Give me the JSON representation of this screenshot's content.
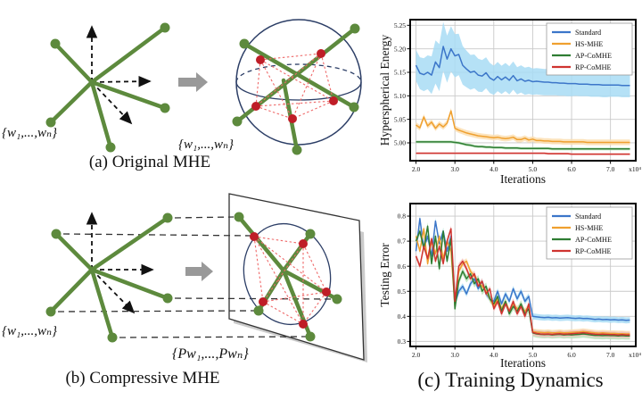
{
  "figure": {
    "background": "#ffffff"
  },
  "colors": {
    "vector_green": "#5d8a3d",
    "dot_red": "#bf1d27",
    "repulsion_dashed_red": "#ef6a6a",
    "sphere_navy": "#2c3e66",
    "transform_arrow_gray": "#999999",
    "axis_black": "#111111"
  },
  "panels": {
    "a": {
      "caption": "(a) Original MHE",
      "set_label_left": "{w₁,...,wₙ}",
      "set_label_right": "{w₁,...,wₙ}"
    },
    "b": {
      "caption": "(b) Compressive MHE",
      "set_label_left": "{w₁,...,wₙ}",
      "set_label_right": "{Pw₁,...,Pwₙ}"
    },
    "c": {
      "caption": "(c) Training Dynamics"
    }
  },
  "chart_data": [
    {
      "type": "line",
      "name": "hyperspherical-energy-chart",
      "title": "",
      "xlabel": "Iterations",
      "ylabel": "Hyperspherical Energy",
      "x_exp_label": "x10⁴",
      "xlim": [
        1.85,
        7.65
      ],
      "ylim": [
        4.962,
        5.262
      ],
      "xticks": [
        2,
        3,
        4,
        5,
        6,
        7
      ],
      "xtick_labels": [
        "2.0",
        "3.0",
        "4.0",
        "5.0",
        "6.0",
        "7.0"
      ],
      "yticks": [
        5.0,
        5.05,
        5.1,
        5.15,
        5.2,
        5.25
      ],
      "ytick_labels": [
        "5.00",
        "5.05",
        "5.10",
        "5.15",
        "5.20",
        "5.25"
      ],
      "grid": true,
      "legend_position": "top-right",
      "x": [
        2,
        2.1,
        2.2,
        2.3,
        2.4,
        2.5,
        2.6,
        2.7,
        2.8,
        2.9,
        3,
        3.1,
        3.2,
        3.3,
        3.4,
        3.5,
        3.6,
        3.7,
        3.8,
        3.9,
        4,
        4.1,
        4.2,
        4.3,
        4.4,
        4.5,
        4.6,
        4.7,
        4.8,
        4.9,
        5,
        5.1,
        5.2,
        5.3,
        5.4,
        5.5,
        5.6,
        5.7,
        5.8,
        5.9,
        6,
        6.1,
        6.2,
        6.3,
        6.4,
        6.5,
        6.6,
        6.7,
        6.8,
        6.9,
        7,
        7.1,
        7.2,
        7.3,
        7.4,
        7.5
      ],
      "series": [
        {
          "name": "Standard",
          "color": "#3c76c9",
          "band_color": "#a8dcf4",
          "values": [
            5.165,
            5.148,
            5.145,
            5.15,
            5.144,
            5.172,
            5.16,
            5.205,
            5.178,
            5.2,
            5.185,
            5.188,
            5.165,
            5.157,
            5.15,
            5.152,
            5.144,
            5.142,
            5.149,
            5.138,
            5.133,
            5.141,
            5.134,
            5.14,
            5.133,
            5.143,
            5.132,
            5.136,
            5.131,
            5.133,
            5.13,
            5.131,
            5.13,
            5.129,
            5.129,
            5.128,
            5.128,
            5.127,
            5.127,
            5.126,
            5.126,
            5.126,
            5.125,
            5.125,
            5.125,
            5.124,
            5.124,
            5.124,
            5.123,
            5.123,
            5.123,
            5.123,
            5.123,
            5.122,
            5.122,
            5.122
          ],
          "band": [
            0.033,
            0.034,
            0.035,
            0.036,
            0.04,
            0.046,
            0.05,
            0.052,
            0.05,
            0.048,
            0.046,
            0.044,
            0.041,
            0.039,
            0.037,
            0.036,
            0.035,
            0.034,
            0.033,
            0.032,
            0.031,
            0.031,
            0.03,
            0.03,
            0.03,
            0.03,
            0.029,
            0.029,
            0.029,
            0.029,
            0.028,
            0.028,
            0.028,
            0.028,
            0.028,
            0.027,
            0.027,
            0.027,
            0.027,
            0.027,
            0.027,
            0.026,
            0.026,
            0.026,
            0.026,
            0.026,
            0.026,
            0.026,
            0.026,
            0.026,
            0.025,
            0.025,
            0.025,
            0.025,
            0.025,
            0.025
          ]
        },
        {
          "name": "HS-MHE",
          "color": "#efa02f",
          "band_color": "#fbdeb0",
          "values": [
            5.038,
            5.032,
            5.055,
            5.036,
            5.044,
            5.031,
            5.04,
            5.034,
            5.042,
            5.068,
            5.031,
            5.027,
            5.024,
            5.021,
            5.019,
            5.017,
            5.015,
            5.014,
            5.013,
            5.012,
            5.011,
            5.012,
            5.01,
            5.009,
            5.01,
            5.012,
            5.007,
            5.007,
            5.01,
            5.006,
            5.008,
            5.005,
            5.005,
            5.004,
            5.004,
            5.003,
            5.003,
            5.003,
            5.002,
            5.002,
            5.002,
            5.002,
            5.002,
            5.002,
            5.001,
            5.001,
            5.001,
            5.001,
            5.001,
            5.001,
            5.001,
            5.001,
            5.001,
            5.001,
            5.001,
            5.001
          ],
          "band": 0.006
        },
        {
          "name": "AP-CoMHE",
          "color": "#2f7d33",
          "band_color": "#bce3bc",
          "values": [
            5.002,
            5.002,
            5.002,
            5.002,
            5.002,
            5.002,
            5.002,
            5.002,
            5.002,
            5.002,
            5.001,
            5.0,
            4.998,
            4.996,
            4.995,
            4.993,
            4.992,
            4.992,
            4.991,
            4.991,
            4.99,
            4.99,
            4.99,
            4.989,
            4.989,
            4.989,
            4.989,
            4.988,
            4.988,
            4.988,
            4.988,
            4.988,
            4.988,
            4.988,
            4.988,
            4.987,
            4.987,
            4.987,
            4.987,
            4.987,
            4.987,
            4.987,
            4.987,
            4.987,
            4.987,
            4.987,
            4.987,
            4.987,
            4.987,
            4.987,
            4.987,
            4.987,
            4.987,
            4.987,
            4.987,
            4.987
          ],
          "band": 0.003
        },
        {
          "name": "RP-CoMHE",
          "color": "#cf3430",
          "band_color": "#f5bdba",
          "values": [
            4.978,
            4.978,
            4.978,
            4.978,
            4.978,
            4.978,
            4.978,
            4.978,
            4.978,
            4.978,
            4.978,
            4.978,
            4.978,
            4.978,
            4.978,
            4.978,
            4.978,
            4.978,
            4.978,
            4.978,
            4.978,
            4.978,
            4.978,
            4.978,
            4.978,
            4.978,
            4.978,
            4.978,
            4.978,
            4.978,
            4.978,
            4.978,
            4.978,
            4.978,
            4.977,
            4.977,
            4.977,
            4.977,
            4.977,
            4.977,
            4.976,
            4.976,
            4.976,
            4.976,
            4.976,
            4.976,
            4.976,
            4.976,
            4.976,
            4.976,
            4.976,
            4.976,
            4.976,
            4.976,
            4.976,
            4.976
          ],
          "band": 0.002
        }
      ]
    },
    {
      "type": "line",
      "name": "testing-error-chart",
      "title": "",
      "xlabel": "Iterations",
      "ylabel": "Testing Error",
      "x_exp_label": "x10⁴",
      "xlim": [
        1.85,
        7.65
      ],
      "ylim": [
        0.28,
        0.85
      ],
      "xticks": [
        2,
        3,
        4,
        5,
        6,
        7
      ],
      "xtick_labels": [
        "2.0",
        "3.0",
        "4.0",
        "5.0",
        "6.0",
        "7.0"
      ],
      "yticks": [
        0.3,
        0.4,
        0.5,
        0.6,
        0.7,
        0.8
      ],
      "ytick_labels": [
        "0.3",
        "0.4",
        "0.5",
        "0.6",
        "0.7",
        "0.8"
      ],
      "grid": true,
      "legend_position": "top-right",
      "x": [
        2,
        2.1,
        2.2,
        2.3,
        2.4,
        2.5,
        2.6,
        2.7,
        2.8,
        2.9,
        3,
        3.1,
        3.2,
        3.3,
        3.4,
        3.5,
        3.6,
        3.7,
        3.8,
        3.9,
        4,
        4.1,
        4.2,
        4.3,
        4.4,
        4.5,
        4.6,
        4.7,
        4.8,
        4.9,
        5,
        5.1,
        5.2,
        5.3,
        5.4,
        5.5,
        5.6,
        5.7,
        5.8,
        5.9,
        6,
        6.1,
        6.2,
        6.3,
        6.4,
        6.5,
        6.6,
        6.7,
        6.8,
        6.9,
        7,
        7.1,
        7.2,
        7.3,
        7.4,
        7.5
      ],
      "series": [
        {
          "name": "Standard",
          "color": "#3c76c9",
          "band_color": "#a8dcf4",
          "values": [
            0.66,
            0.79,
            0.67,
            0.72,
            0.64,
            0.78,
            0.69,
            0.74,
            0.66,
            0.72,
            0.45,
            0.5,
            0.52,
            0.49,
            0.53,
            0.55,
            0.51,
            0.54,
            0.49,
            0.47,
            0.46,
            0.5,
            0.45,
            0.49,
            0.46,
            0.51,
            0.47,
            0.5,
            0.46,
            0.48,
            0.4,
            0.398,
            0.396,
            0.395,
            0.396,
            0.394,
            0.395,
            0.393,
            0.394,
            0.395,
            0.393,
            0.392,
            0.393,
            0.391,
            0.392,
            0.39,
            0.388,
            0.389,
            0.387,
            0.388,
            0.386,
            0.387,
            0.385,
            0.386,
            0.384,
            0.385
          ],
          "band": 0.012
        },
        {
          "name": "HS-MHE",
          "color": "#efa02f",
          "band_color": "#fbdeb0",
          "values": [
            0.72,
            0.66,
            0.75,
            0.61,
            0.7,
            0.65,
            0.72,
            0.63,
            0.7,
            0.66,
            0.44,
            0.58,
            0.61,
            0.62,
            0.58,
            0.56,
            0.54,
            0.52,
            0.5,
            0.47,
            0.44,
            0.47,
            0.43,
            0.46,
            0.42,
            0.45,
            0.43,
            0.44,
            0.42,
            0.44,
            0.34,
            0.337,
            0.336,
            0.335,
            0.336,
            0.334,
            0.335,
            0.336,
            0.334,
            0.335,
            0.336,
            0.337,
            0.338,
            0.34,
            0.338,
            0.336,
            0.334,
            0.333,
            0.334,
            0.333,
            0.332,
            0.332,
            0.331,
            0.331,
            0.33,
            0.33
          ],
          "band": 0.012
        },
        {
          "name": "AP-CoMHE",
          "color": "#2f7d33",
          "band_color": "#bce3bc",
          "values": [
            0.7,
            0.74,
            0.67,
            0.76,
            0.61,
            0.72,
            0.59,
            0.74,
            0.62,
            0.71,
            0.43,
            0.54,
            0.58,
            0.55,
            0.57,
            0.53,
            0.55,
            0.5,
            0.52,
            0.47,
            0.45,
            0.48,
            0.42,
            0.46,
            0.41,
            0.44,
            0.42,
            0.45,
            0.41,
            0.43,
            0.334,
            0.33,
            0.328,
            0.327,
            0.328,
            0.326,
            0.327,
            0.328,
            0.326,
            0.327,
            0.326,
            0.327,
            0.328,
            0.33,
            0.328,
            0.326,
            0.324,
            0.324,
            0.323,
            0.324,
            0.323,
            0.323,
            0.322,
            0.323,
            0.322,
            0.322
          ],
          "band": 0.015
        },
        {
          "name": "RP-CoMHE",
          "color": "#cf3430",
          "band_color": "#f5bdba",
          "values": [
            0.64,
            0.6,
            0.68,
            0.63,
            0.71,
            0.62,
            0.68,
            0.61,
            0.7,
            0.75,
            0.46,
            0.6,
            0.62,
            0.59,
            0.55,
            0.57,
            0.52,
            0.54,
            0.49,
            0.51,
            0.43,
            0.46,
            0.41,
            0.45,
            0.42,
            0.46,
            0.41,
            0.44,
            0.4,
            0.45,
            0.336,
            0.332,
            0.33,
            0.329,
            0.33,
            0.328,
            0.33,
            0.331,
            0.329,
            0.33,
            0.331,
            0.332,
            0.333,
            0.335,
            0.333,
            0.331,
            0.329,
            0.328,
            0.329,
            0.328,
            0.327,
            0.327,
            0.326,
            0.327,
            0.326,
            0.326
          ],
          "band": 0.012
        }
      ]
    }
  ]
}
